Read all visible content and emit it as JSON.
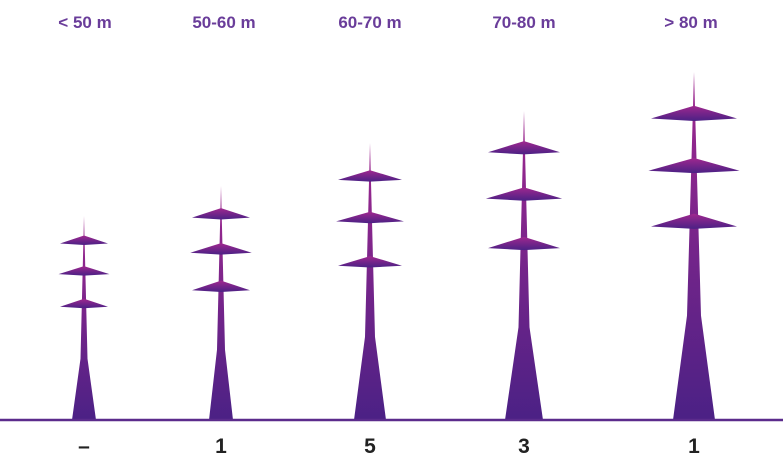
{
  "chart_data": {
    "type": "bar",
    "categories": [
      "< 50 m",
      "50-60 m",
      "60-70 m",
      "70-80 m",
      "> 80 m"
    ],
    "values": [
      "–",
      "1",
      "5",
      "3",
      "1"
    ],
    "title": "",
    "xlabel": "",
    "ylabel": "",
    "legend": "none",
    "grid": false,
    "colors": {
      "label": "#6a3d9a",
      "pylon_top": "#a0288f",
      "pylon_bottom": "#4b2185",
      "baseline": "#5b2b8c",
      "count": "#222222"
    }
  }
}
